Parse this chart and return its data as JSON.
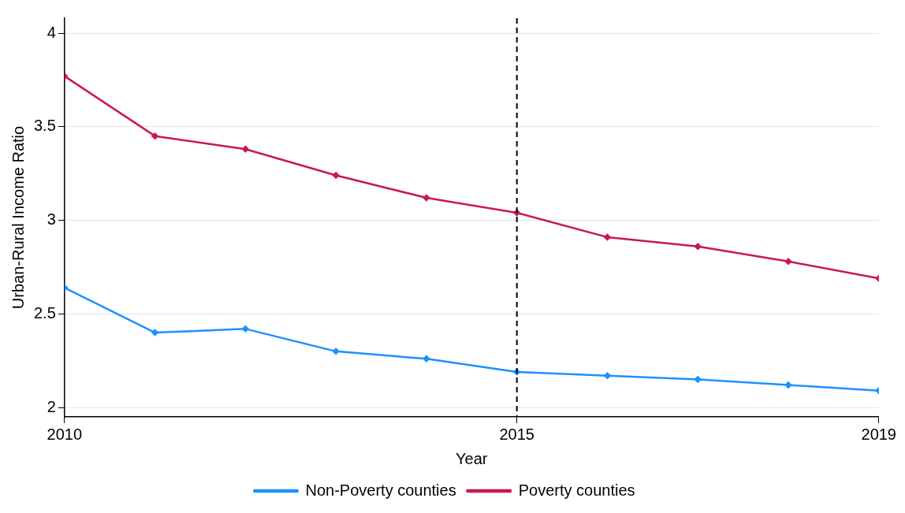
{
  "chart_data": {
    "type": "line",
    "xlabel": "Year",
    "ylabel": "Urban-Rural Income Ratio",
    "x": [
      2010,
      2011,
      2012,
      2013,
      2014,
      2015,
      2016,
      2017,
      2018,
      2019
    ],
    "series": [
      {
        "name": "Non-Poverty counties",
        "color": "#1e90ff",
        "values": [
          2.64,
          2.4,
          2.42,
          2.3,
          2.26,
          2.19,
          2.17,
          2.15,
          2.12,
          2.09
        ]
      },
      {
        "name": "Poverty counties",
        "color": "#c8185a",
        "values": [
          3.77,
          3.45,
          3.38,
          3.24,
          3.12,
          3.04,
          2.91,
          2.86,
          2.78,
          2.69
        ]
      }
    ],
    "xlim": [
      2010,
      2019
    ],
    "xticks": [
      2010,
      2015,
      2019
    ],
    "ylim": [
      1.95,
      4.08
    ],
    "yticks": [
      2,
      2.5,
      3,
      3.5,
      4
    ],
    "grid": "y",
    "legend": "bottom",
    "marker": "diamond",
    "line_style": "solid",
    "ref_lines": [
      {
        "axis": "x",
        "value": 2015,
        "color": "#000000",
        "line_style": "dashed"
      }
    ]
  }
}
